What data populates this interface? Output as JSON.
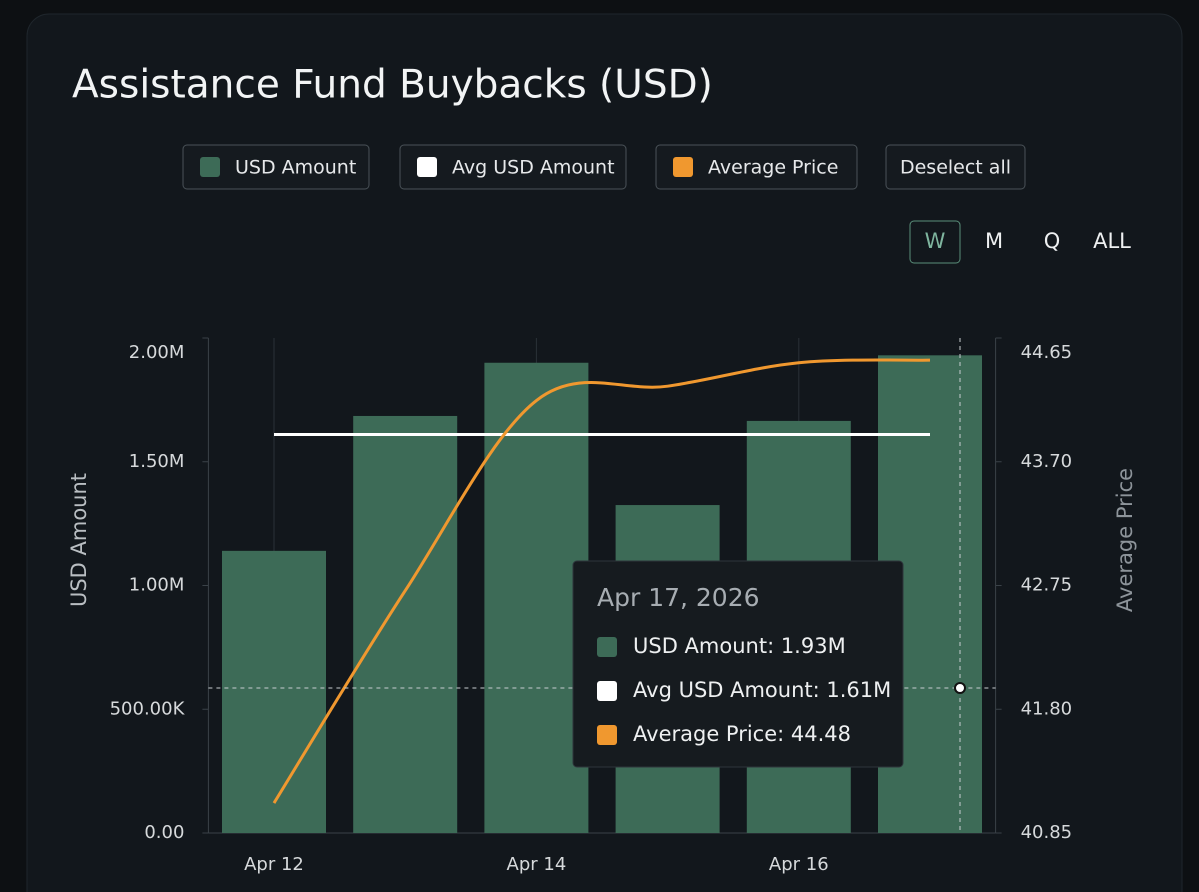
{
  "chart_data": {
    "type": "bar",
    "title": "Assistance Fund Buybacks (USD)",
    "deselect_label": "Deselect all",
    "periods": [
      "W",
      "M",
      "Q",
      "ALL"
    ],
    "active_period": "W",
    "categories": [
      "Apr 12",
      null,
      "Apr 14",
      null,
      "Apr 16",
      null
    ],
    "y_label": "USD Amount",
    "y2_label": "Average Price",
    "ylim": [
      0,
      2000000
    ],
    "yticks": [
      {
        "value": 0,
        "label": "0.00"
      },
      {
        "value": 500000,
        "label": "500.00K"
      },
      {
        "value": 1000000,
        "label": "1.00M"
      },
      {
        "value": 1500000,
        "label": "1.50M"
      },
      {
        "value": 2000000,
        "label": "2.00M"
      }
    ],
    "y2lim": [
      40.85,
      44.65
    ],
    "y2ticks": [
      40.85,
      {
        "value": 41.8,
        "label": "41.80"
      },
      42.75,
      {
        "value": 43.7,
        "label": "43.70"
      },
      44.65
    ],
    "series": [
      {
        "name": "USD Amount",
        "type": "bar",
        "color": "#3d6b57",
        "values": [
          1140000,
          1685000,
          1900000,
          1325000,
          1665000,
          1930000
        ]
      },
      {
        "name": "Avg USD Amount",
        "type": "line",
        "color": "#ffffff",
        "values": [
          1610000,
          1610000,
          1610000,
          1610000,
          1610000,
          1610000
        ]
      },
      {
        "name": "Average Price",
        "type": "line",
        "axis": "y2",
        "color": "#f0982f",
        "values": [
          41.08,
          42.71,
          44.17,
          44.28,
          44.46,
          44.48
        ]
      }
    ],
    "tooltip": {
      "title": "Apr 17, 2026",
      "items": [
        "USD Amount: 1.93M",
        "Avg USD Amount: 1.61M",
        "Average Price: 44.48"
      ]
    }
  }
}
